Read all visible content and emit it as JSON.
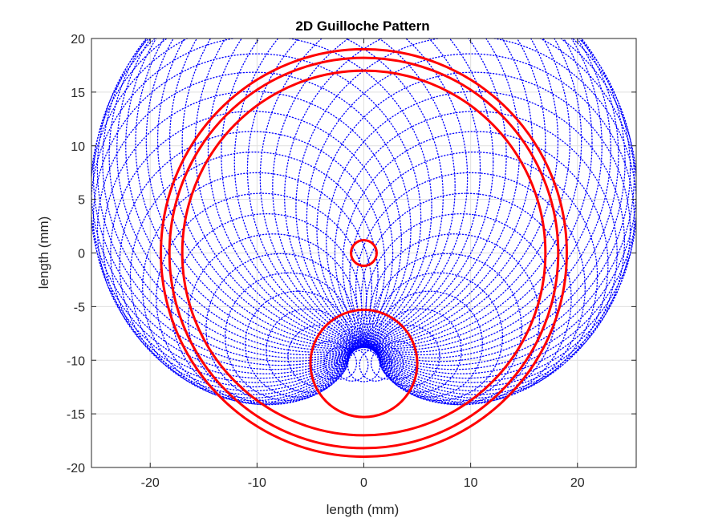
{
  "chart_data": {
    "type": "line",
    "title": "2D Guilloche Pattern",
    "xlabel": "length (mm)",
    "ylabel": "length (mm)",
    "xlim": [
      -25.5,
      25.5
    ],
    "ylim": [
      -20,
      20
    ],
    "xticks": [
      -20,
      -10,
      0,
      10,
      20
    ],
    "yticks": [
      -20,
      -15,
      -10,
      -5,
      0,
      5,
      10,
      15,
      20
    ],
    "grid": true,
    "pattern": {
      "color": "#0000ff",
      "marker": "dot",
      "lobes": 60,
      "orbit_radius": 10.5,
      "orbit_center": [
        0,
        0
      ],
      "inner_radius": 1.5,
      "outer_radius": 30
    },
    "series": [
      {
        "shape": "circle",
        "center": [
          0,
          0
        ],
        "radius": 19,
        "color": "#ff0000"
      },
      {
        "shape": "circle",
        "center": [
          0,
          0
        ],
        "radius": 18.2,
        "color": "#ff0000"
      },
      {
        "shape": "circle",
        "center": [
          0,
          0
        ],
        "radius": 17,
        "color": "#ff0000"
      },
      {
        "shape": "circle",
        "center": [
          0,
          0
        ],
        "radius": 1.2,
        "color": "#ff0000"
      },
      {
        "shape": "circle",
        "center": [
          0,
          -10.3
        ],
        "radius": 5,
        "color": "#ff0000"
      }
    ]
  }
}
